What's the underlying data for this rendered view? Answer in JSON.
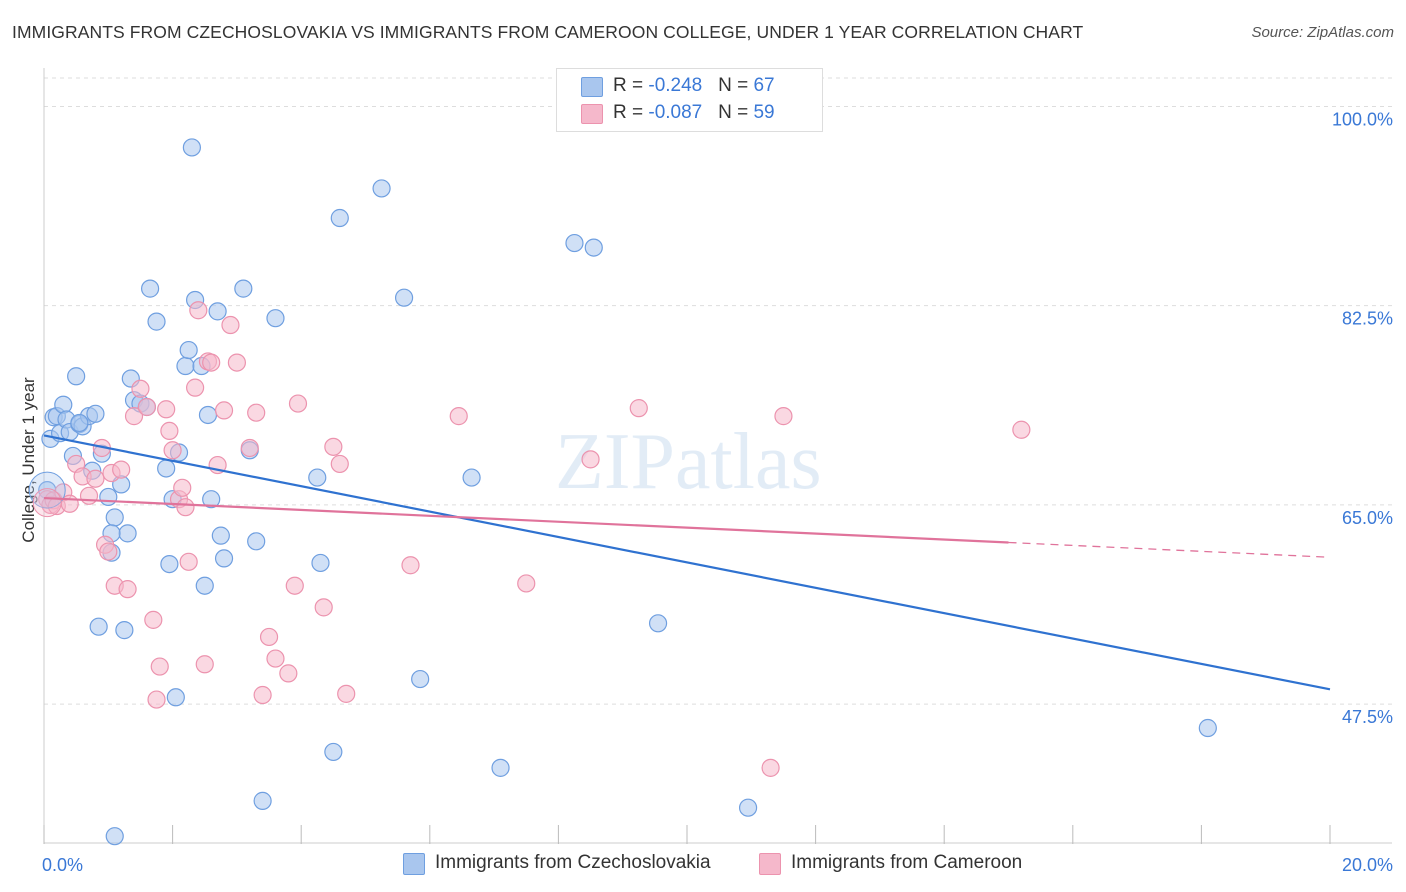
{
  "header": {
    "title": "IMMIGRANTS FROM CZECHOSLOVAKIA VS IMMIGRANTS FROM CAMEROON COLLEGE, UNDER 1 YEAR CORRELATION CHART",
    "source": "Source: ZipAtlas.com"
  },
  "legend": {
    "czech": {
      "r_label": "R = ",
      "r_value": "-0.248",
      "n_label": "N = ",
      "n_value": "67"
    },
    "cameroon": {
      "r_label": "R = ",
      "r_value": "-0.087",
      "n_label": "N = ",
      "n_value": "59"
    }
  },
  "bottom_legend": {
    "czech_label": "Immigrants from Czechoslovakia",
    "cameroon_label": "Immigrants from Cameroon"
  },
  "colors": {
    "czech_fill": "#a9c6ee",
    "czech_stroke": "#6f9fe0",
    "czech_line": "#2f72d0",
    "cameroon_fill": "#f5b8cb",
    "cameroon_stroke": "#ec93ae",
    "cameroon_line": "#e0739b",
    "axis_label": "#3a78d6",
    "grid": "#dddddd"
  },
  "chart_data": {
    "type": "scatter",
    "title": "IMMIGRANTS FROM CZECHOSLOVAKIA VS IMMIGRANTS FROM CAMEROON COLLEGE, UNDER 1 YEAR CORRELATION CHART",
    "xlabel": "",
    "ylabel": "College, Under 1 year",
    "xlim": [
      0,
      20
    ],
    "ylim": [
      35.3,
      102.5
    ],
    "x_tick_labels": [
      {
        "value": 0,
        "label": "0.0%"
      },
      {
        "value": 20,
        "label": "20.0%"
      }
    ],
    "x_minor_ticks": [
      0,
      2,
      4,
      6,
      8,
      10,
      12,
      14,
      16,
      18,
      20
    ],
    "y_ticks": [
      {
        "value": 47.5,
        "label": "47.5%"
      },
      {
        "value": 65.0,
        "label": "65.0%"
      },
      {
        "value": 82.5,
        "label": "82.5%"
      },
      {
        "value": 100.0,
        "label": "100.0%"
      }
    ],
    "watermark": "ZIPatlas",
    "series": [
      {
        "name": "Immigrants from Czechoslovakia",
        "color_key": "czech",
        "points": [
          [
            0.05,
            66.3
          ],
          [
            0.1,
            70.8
          ],
          [
            0.15,
            72.7
          ],
          [
            0.2,
            72.8
          ],
          [
            0.25,
            71.3
          ],
          [
            0.3,
            73.8
          ],
          [
            0.35,
            72.5
          ],
          [
            0.4,
            71.4
          ],
          [
            0.45,
            69.3
          ],
          [
            0.5,
            76.3
          ],
          [
            0.55,
            72.1
          ],
          [
            0.6,
            71.9
          ],
          [
            0.7,
            72.8
          ],
          [
            0.8,
            73.0
          ],
          [
            0.9,
            69.5
          ],
          [
            1.0,
            65.7
          ],
          [
            1.05,
            60.8
          ],
          [
            1.1,
            63.9
          ],
          [
            1.2,
            66.8
          ],
          [
            1.3,
            62.5
          ],
          [
            1.35,
            76.1
          ],
          [
            1.4,
            74.2
          ],
          [
            1.5,
            73.9
          ],
          [
            1.6,
            73.6
          ],
          [
            1.65,
            84.0
          ],
          [
            1.75,
            81.1
          ],
          [
            1.9,
            68.2
          ],
          [
            1.95,
            59.8
          ],
          [
            2.0,
            65.5
          ],
          [
            2.05,
            48.1
          ],
          [
            2.1,
            69.6
          ],
          [
            2.2,
            77.2
          ],
          [
            2.25,
            78.6
          ],
          [
            2.3,
            96.4
          ],
          [
            2.35,
            83.0
          ],
          [
            2.45,
            77.2
          ],
          [
            2.5,
            57.9
          ],
          [
            2.55,
            72.9
          ],
          [
            2.6,
            65.5
          ],
          [
            2.7,
            82.0
          ],
          [
            2.75,
            62.3
          ],
          [
            2.8,
            60.3
          ],
          [
            3.1,
            84.0
          ],
          [
            3.2,
            69.8
          ],
          [
            3.3,
            61.8
          ],
          [
            3.4,
            39.0
          ],
          [
            3.6,
            81.4
          ],
          [
            4.25,
            67.4
          ],
          [
            4.3,
            59.9
          ],
          [
            4.5,
            43.3
          ],
          [
            4.6,
            90.2
          ],
          [
            5.25,
            92.8
          ],
          [
            5.6,
            83.2
          ],
          [
            5.85,
            49.7
          ],
          [
            6.65,
            67.4
          ],
          [
            7.1,
            41.9
          ],
          [
            8.25,
            88.0
          ],
          [
            8.55,
            87.6
          ],
          [
            9.55,
            54.6
          ],
          [
            10.95,
            38.4
          ],
          [
            18.1,
            45.4
          ],
          [
            1.25,
            54.0
          ],
          [
            0.85,
            54.3
          ],
          [
            1.1,
            35.9
          ],
          [
            1.05,
            62.5
          ],
          [
            0.75,
            68.0
          ],
          [
            0.55,
            72.2
          ]
        ]
      },
      {
        "name": "Immigrants from Cameroon",
        "color_key": "cameroon",
        "points": [
          [
            0.05,
            65.5
          ],
          [
            0.1,
            65.0
          ],
          [
            0.15,
            65.4
          ],
          [
            0.2,
            64.9
          ],
          [
            0.3,
            66.1
          ],
          [
            0.4,
            65.1
          ],
          [
            0.5,
            68.6
          ],
          [
            0.6,
            67.5
          ],
          [
            0.7,
            65.8
          ],
          [
            0.8,
            67.3
          ],
          [
            0.9,
            70.0
          ],
          [
            0.95,
            61.5
          ],
          [
            1.0,
            60.9
          ],
          [
            1.05,
            67.8
          ],
          [
            1.1,
            57.9
          ],
          [
            1.2,
            68.1
          ],
          [
            1.3,
            57.6
          ],
          [
            1.4,
            72.8
          ],
          [
            1.5,
            75.2
          ],
          [
            1.6,
            73.6
          ],
          [
            1.7,
            54.9
          ],
          [
            1.75,
            47.9
          ],
          [
            1.8,
            50.8
          ],
          [
            1.9,
            73.4
          ],
          [
            1.95,
            71.5
          ],
          [
            2.0,
            69.8
          ],
          [
            2.1,
            65.5
          ],
          [
            2.15,
            66.5
          ],
          [
            2.2,
            64.8
          ],
          [
            2.25,
            60.0
          ],
          [
            2.35,
            75.3
          ],
          [
            2.4,
            82.1
          ],
          [
            2.5,
            51.0
          ],
          [
            2.55,
            77.6
          ],
          [
            2.6,
            77.5
          ],
          [
            2.7,
            68.5
          ],
          [
            2.8,
            73.3
          ],
          [
            2.9,
            80.8
          ],
          [
            3.0,
            77.5
          ],
          [
            3.2,
            70.0
          ],
          [
            3.3,
            73.1
          ],
          [
            3.4,
            48.3
          ],
          [
            3.5,
            53.4
          ],
          [
            3.6,
            51.5
          ],
          [
            3.8,
            50.2
          ],
          [
            3.9,
            57.9
          ],
          [
            3.95,
            73.9
          ],
          [
            4.35,
            56.0
          ],
          [
            4.5,
            70.1
          ],
          [
            4.6,
            68.6
          ],
          [
            4.7,
            48.4
          ],
          [
            5.7,
            59.7
          ],
          [
            6.45,
            72.8
          ],
          [
            7.5,
            58.1
          ],
          [
            8.5,
            69.0
          ],
          [
            9.25,
            73.5
          ],
          [
            11.3,
            41.9
          ],
          [
            11.5,
            72.8
          ],
          [
            15.2,
            71.6
          ]
        ]
      }
    ],
    "trend_lines": [
      {
        "series": "Immigrants from Czechoslovakia",
        "x_start": 0.0,
        "y_start": 71.1,
        "x_end": 20.0,
        "y_end": 48.8,
        "style": "solid"
      },
      {
        "series": "Immigrants from Cameroon",
        "x_start": 0.0,
        "y_start": 65.6,
        "x_end": 15.0,
        "y_end": 61.7,
        "style": "solid"
      },
      {
        "series": "Immigrants from Cameroon",
        "x_start": 15.0,
        "y_start": 61.7,
        "x_end": 20.0,
        "y_end": 60.4,
        "style": "dashed"
      }
    ]
  }
}
